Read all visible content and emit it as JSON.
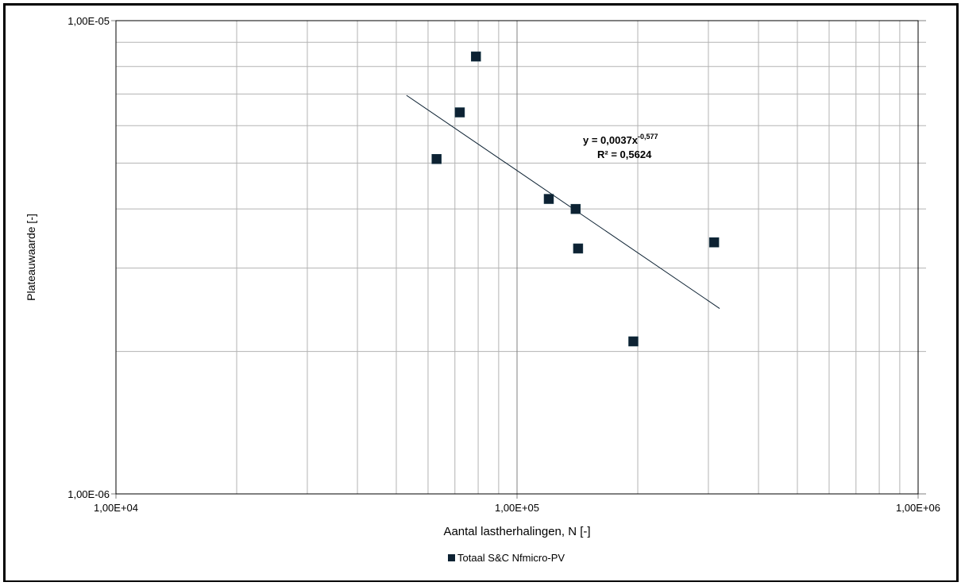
{
  "chart_data": {
    "type": "scatter",
    "title": "",
    "xlabel": "Aantal lastherhalingen, N [-]",
    "ylabel": "Plateauwaarde [-]",
    "x_scale": "log",
    "y_scale": "log",
    "xlim": [
      10000,
      1000000
    ],
    "ylim": [
      1e-06,
      1e-05
    ],
    "x_tick_labels": [
      "1,00E+04",
      "1,00E+05",
      "1,00E+06"
    ],
    "x_tick_values": [
      10000,
      100000,
      1000000
    ],
    "y_tick_labels": [
      "1,00E-06",
      "1,00E-05"
    ],
    "y_tick_values": [
      1e-06,
      1e-05
    ],
    "grid": true,
    "legend_position": "bottom",
    "series": [
      {
        "name": "Totaal S&C Nfmicro-PV",
        "color": "#0d2233",
        "marker": "square",
        "points": [
          {
            "x": 63000,
            "y": 5.1e-06
          },
          {
            "x": 72000,
            "y": 6.4e-06
          },
          {
            "x": 79000,
            "y": 8.4e-06
          },
          {
            "x": 120000,
            "y": 4.2e-06
          },
          {
            "x": 140000,
            "y": 4e-06
          },
          {
            "x": 142000,
            "y": 3.3e-06
          },
          {
            "x": 195000,
            "y": 2.1e-06
          },
          {
            "x": 310000,
            "y": 3.4e-06
          }
        ]
      }
    ],
    "trendline": {
      "type": "power",
      "coefficient": 0.0037,
      "exponent": -0.577,
      "x_range": [
        53000,
        320000
      ],
      "color": "#0d2233"
    },
    "annotations": {
      "equation_main": "y = 0,0037x",
      "equation_exponent": "-0,577",
      "r_squared": "R² = 0,5624"
    }
  }
}
